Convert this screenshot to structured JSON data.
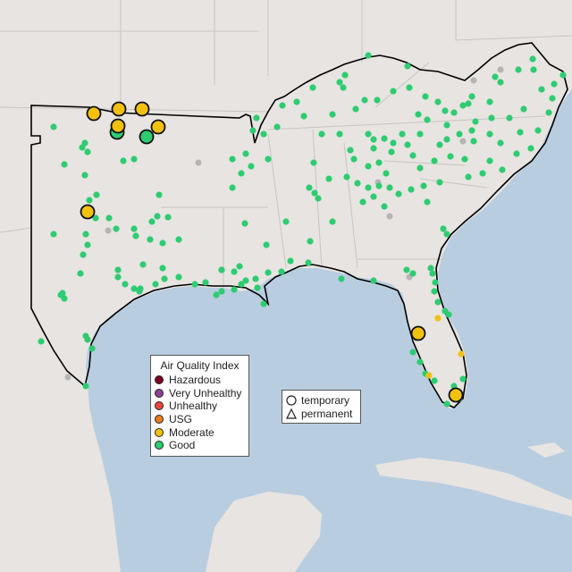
{
  "legend": {
    "title": "Air Quality Index",
    "categories": [
      {
        "label": "Hazardous",
        "color": "#7e0023"
      },
      {
        "label": "Very Unhealthy",
        "color": "#8f3f97"
      },
      {
        "label": "Unhealthy",
        "color": "#e8463b"
      },
      {
        "label": "USG",
        "color": "#e87d1e"
      },
      {
        "label": "Moderate",
        "color": "#f2c10f"
      },
      {
        "label": "Good",
        "color": "#2ecc71"
      }
    ]
  },
  "type_legend": {
    "items": [
      {
        "label": "temporary",
        "shape": "circle-icon"
      },
      {
        "label": "permanent",
        "shape": "triangle-icon"
      }
    ]
  },
  "colors": {
    "water": "#b9cde0",
    "land": "#e7e4e1",
    "good": "#2ecc71",
    "moderate": "#f2c10f",
    "no_data": "#b5b5b5",
    "region_outline": "#000000"
  }
}
